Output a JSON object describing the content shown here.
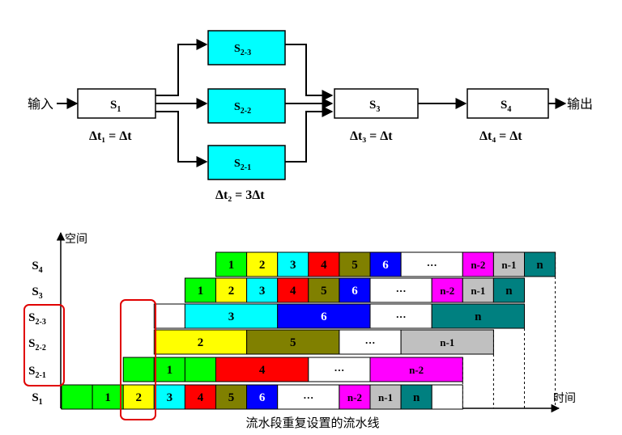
{
  "top": {
    "input_label": "输入",
    "output_label": "输出",
    "s1": {
      "name": "S",
      "sub": "1",
      "time": "Δt₁ = Δt"
    },
    "s21": {
      "name": "S",
      "sub": "2-1"
    },
    "s22": {
      "name": "S",
      "sub": "2-2"
    },
    "s23": {
      "name": "S",
      "sub": "2-3"
    },
    "s2_time": "Δt₂ = 3Δt",
    "s3": {
      "name": "S",
      "sub": "3",
      "time": "Δt₃ = Δt"
    },
    "s4": {
      "name": "S",
      "sub": "4",
      "time": "Δt₄ = Δt"
    }
  },
  "chart": {
    "y_axis_label": "空间",
    "x_axis_label": "时间",
    "caption": "流水段重复设置的流水线",
    "row_labels": [
      {
        "name": "S",
        "sub": "1"
      },
      {
        "name": "S",
        "sub": "2-1"
      },
      {
        "name": "S",
        "sub": "2-2"
      },
      {
        "name": "S",
        "sub": "2-3"
      },
      {
        "name": "S",
        "sub": "3"
      },
      {
        "name": "S",
        "sub": "4"
      }
    ],
    "colors": {
      "1": "#00ff00",
      "2": "#ffff00",
      "3": "#00ffff",
      "4": "#ff0000",
      "5": "#808000",
      "6": "#0000ff",
      "dots": "#ffffff",
      "n-2": "#ff00ff",
      "n-1": "#c0c0c0",
      "n": "#008080",
      "empty": "#ffffff"
    },
    "rows": [
      [
        {
          "label": "",
          "start": 0,
          "len": 1,
          "color": "1"
        },
        {
          "label": "1",
          "start": 1,
          "len": 1,
          "color": "1"
        },
        {
          "label": "2",
          "start": 2,
          "len": 1,
          "color": "2"
        },
        {
          "label": "3",
          "start": 3,
          "len": 1,
          "color": "3"
        },
        {
          "label": "4",
          "start": 4,
          "len": 1,
          "color": "4"
        },
        {
          "label": "5",
          "start": 5,
          "len": 1,
          "color": "5"
        },
        {
          "label": "6",
          "start": 6,
          "len": 1,
          "color": "6"
        },
        {
          "label": "···",
          "start": 7,
          "len": 2,
          "color": "dots"
        },
        {
          "label": "n-2",
          "start": 9,
          "len": 1,
          "color": "n-2"
        },
        {
          "label": "n-1",
          "start": 10,
          "len": 1,
          "color": "n-1"
        },
        {
          "label": "n",
          "start": 11,
          "len": 1,
          "color": "n"
        },
        {
          "label": "",
          "start": 12,
          "len": 1,
          "color": "empty"
        }
      ],
      [
        {
          "label": "",
          "start": 2,
          "len": 1,
          "color": "1"
        },
        {
          "label": "1",
          "start": 3,
          "len": 1,
          "color": "1"
        },
        {
          "label": "",
          "start": 4,
          "len": 1,
          "color": "1"
        },
        {
          "label": "4",
          "start": 5,
          "len": 3,
          "color": "4"
        },
        {
          "label": "···",
          "start": 8,
          "len": 2,
          "color": "dots"
        },
        {
          "label": "n-2",
          "start": 10,
          "len": 3,
          "color": "n-2"
        }
      ],
      [
        {
          "label": "2",
          "start": 3,
          "len": 3,
          "color": "2"
        },
        {
          "label": "5",
          "start": 6,
          "len": 3,
          "color": "5"
        },
        {
          "label": "···",
          "start": 9,
          "len": 2,
          "color": "dots"
        },
        {
          "label": "n-1",
          "start": 11,
          "len": 3,
          "color": "n-1"
        }
      ],
      [
        {
          "label": "",
          "start": 3,
          "len": 1,
          "color": "empty"
        },
        {
          "label": "3",
          "start": 4,
          "len": 3,
          "color": "3"
        },
        {
          "label": "6",
          "start": 7,
          "len": 3,
          "color": "6"
        },
        {
          "label": "···",
          "start": 10,
          "len": 2,
          "color": "dots"
        },
        {
          "label": "n",
          "start": 12,
          "len": 3,
          "color": "n"
        }
      ],
      [
        {
          "label": "1",
          "start": 4,
          "len": 1,
          "color": "1"
        },
        {
          "label": "2",
          "start": 5,
          "len": 1,
          "color": "2"
        },
        {
          "label": "3",
          "start": 6,
          "len": 1,
          "color": "3"
        },
        {
          "label": "4",
          "start": 7,
          "len": 1,
          "color": "4"
        },
        {
          "label": "5",
          "start": 8,
          "len": 1,
          "color": "5"
        },
        {
          "label": "6",
          "start": 9,
          "len": 1,
          "color": "6"
        },
        {
          "label": "···",
          "start": 10,
          "len": 2,
          "color": "dots"
        },
        {
          "label": "n-2",
          "start": 12,
          "len": 1,
          "color": "n-2"
        },
        {
          "label": "n-1",
          "start": 13,
          "len": 1,
          "color": "n-1"
        },
        {
          "label": "n",
          "start": 14,
          "len": 1,
          "color": "n"
        }
      ],
      [
        {
          "label": "1",
          "start": 5,
          "len": 1,
          "color": "1"
        },
        {
          "label": "2",
          "start": 6,
          "len": 1,
          "color": "2"
        },
        {
          "label": "3",
          "start": 7,
          "len": 1,
          "color": "3"
        },
        {
          "label": "4",
          "start": 8,
          "len": 1,
          "color": "4"
        },
        {
          "label": "5",
          "start": 9,
          "len": 1,
          "color": "5"
        },
        {
          "label": "6",
          "start": 10,
          "len": 1,
          "color": "6"
        },
        {
          "label": "···",
          "start": 11,
          "len": 2,
          "color": "dots"
        },
        {
          "label": "n-2",
          "start": 13,
          "len": 1,
          "color": "n-2"
        },
        {
          "label": "n-1",
          "start": 14,
          "len": 1,
          "color": "n-1"
        },
        {
          "label": "n",
          "start": 15,
          "len": 1,
          "color": "n"
        }
      ]
    ],
    "highlight_color": "#e00000"
  }
}
